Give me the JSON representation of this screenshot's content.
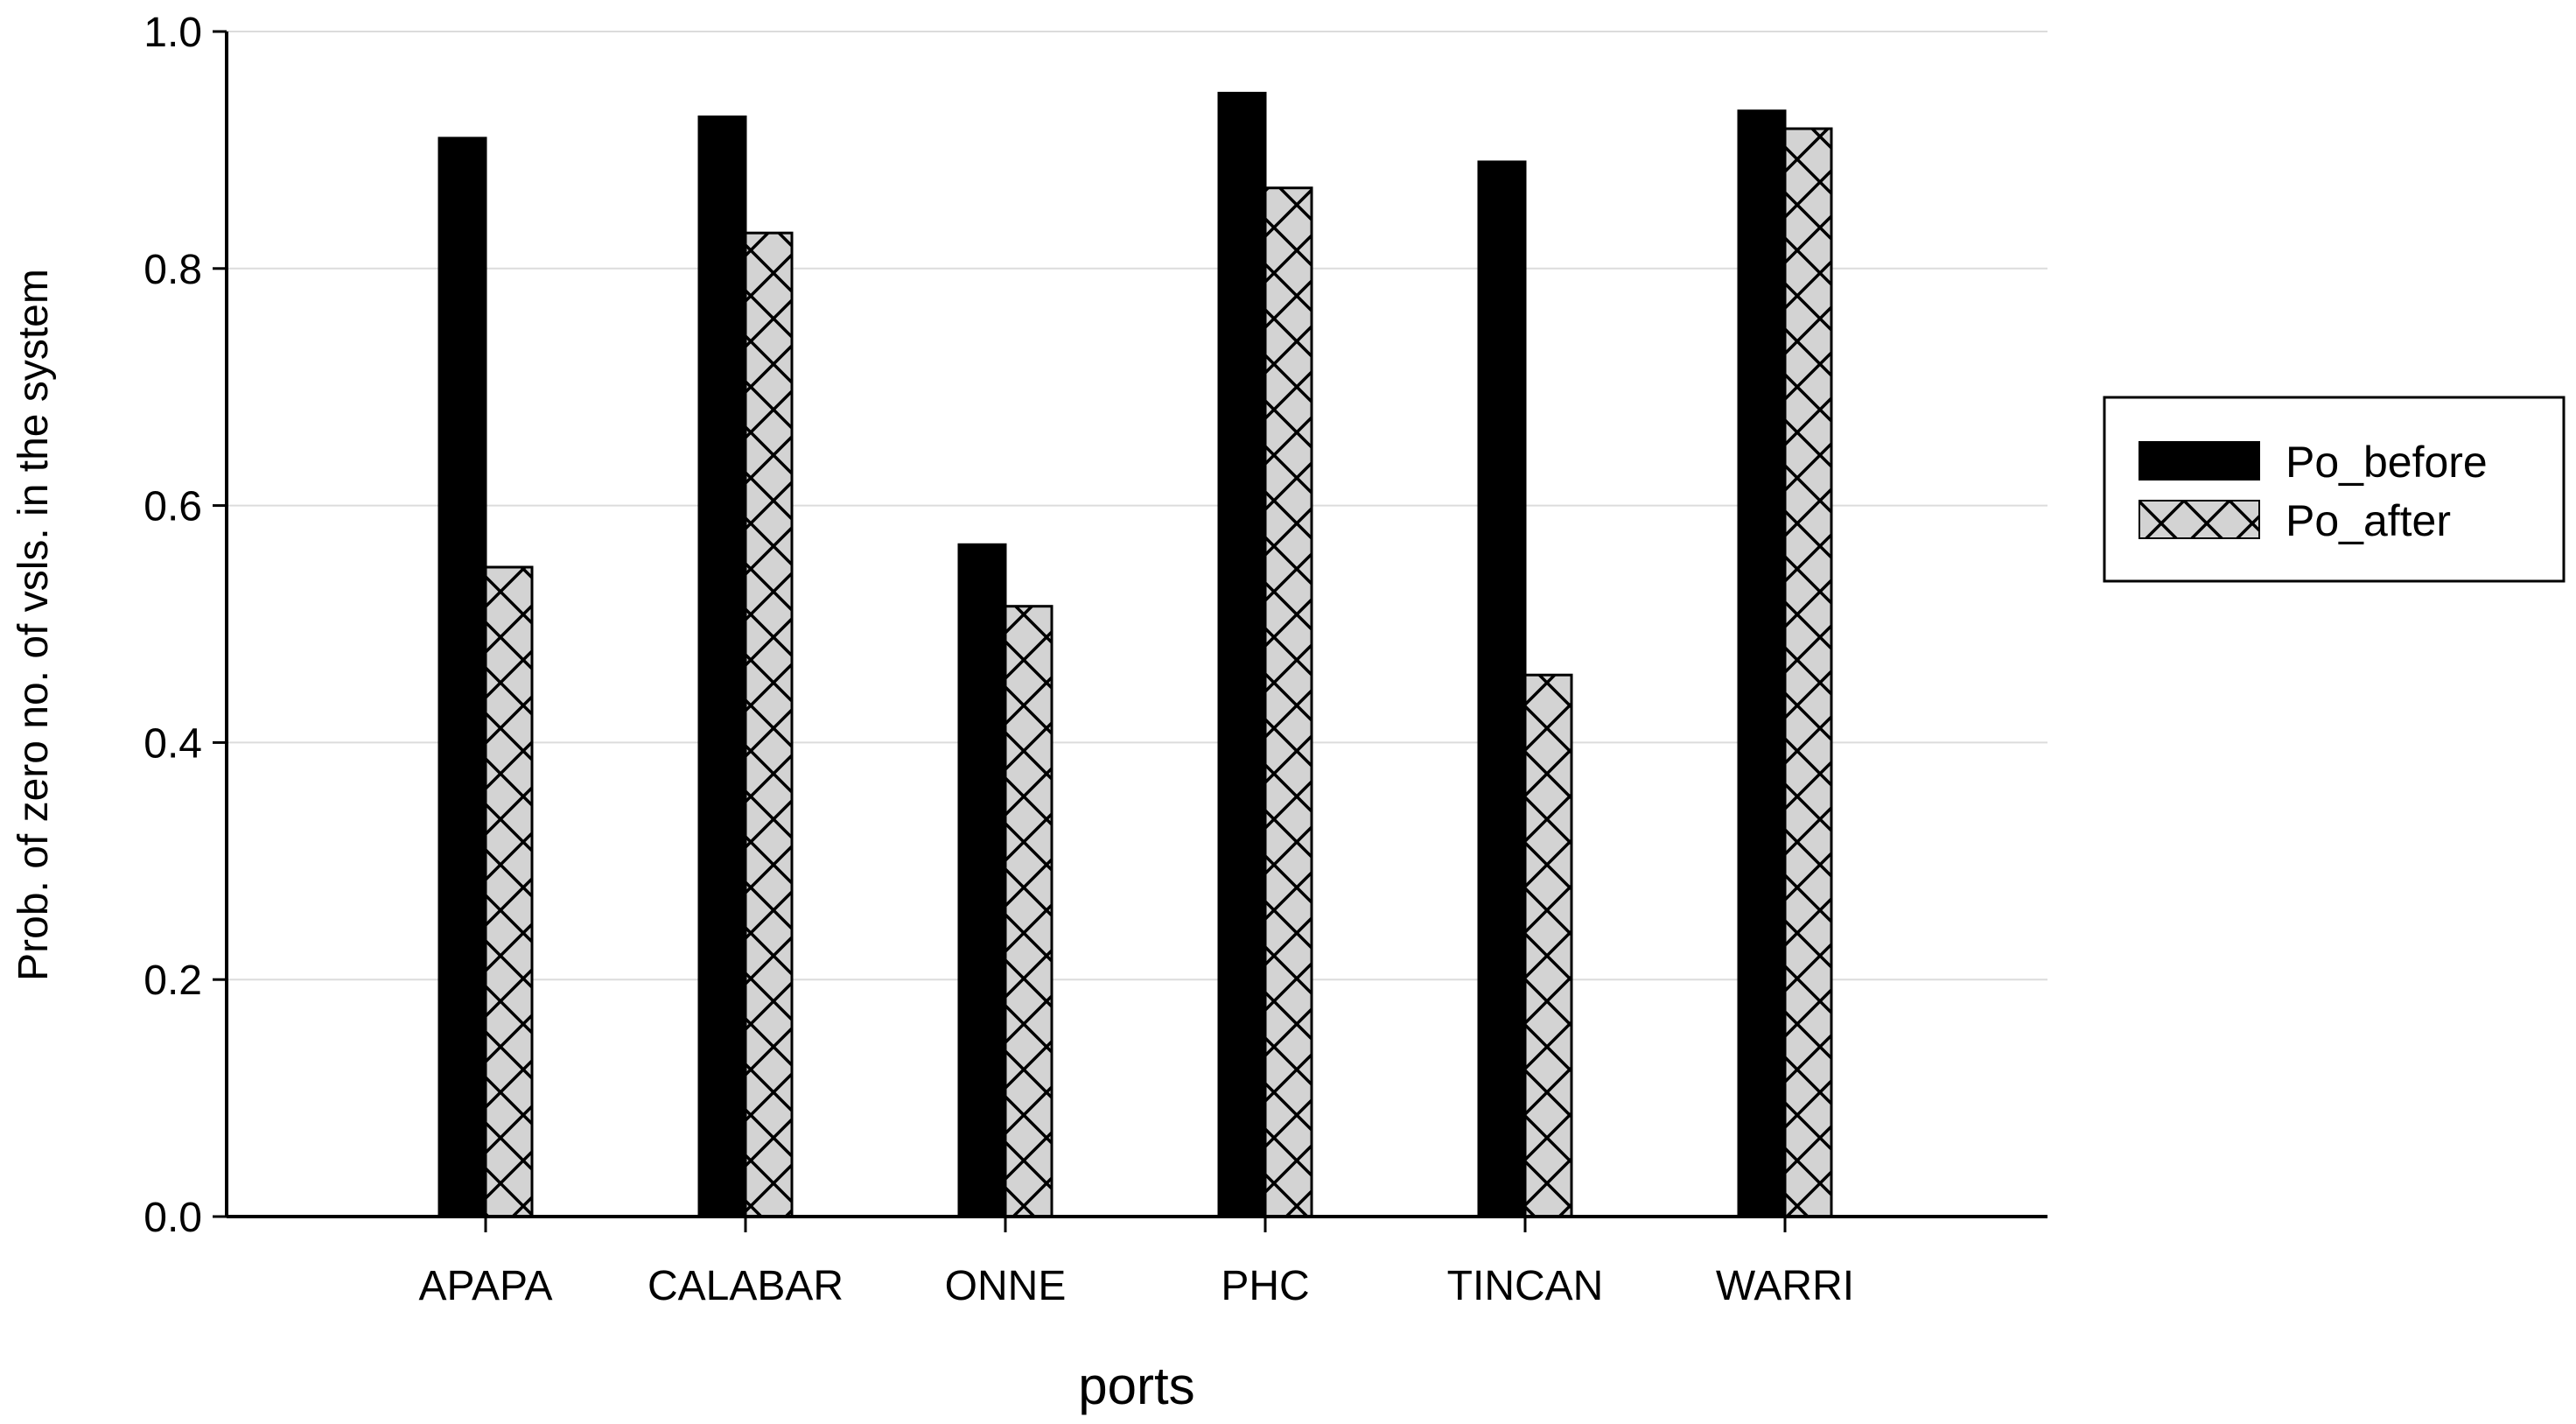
{
  "chart_data": {
    "type": "bar",
    "title": "",
    "xlabel": "ports",
    "ylabel": "Prob. of zero no. of vsls. in the system",
    "categories": [
      "APAPA",
      "CALABAR",
      "ONNE",
      "PHC",
      "TINCAN",
      "WARRI"
    ],
    "series": [
      {
        "name": "Po_before",
        "values": [
          0.91,
          0.928,
          0.567,
          0.948,
          0.89,
          0.933
        ],
        "fill": "#000000",
        "pattern": "solid"
      },
      {
        "name": "Po_after",
        "values": [
          0.548,
          0.83,
          0.515,
          0.868,
          0.457,
          0.918
        ],
        "fill": "#d3d3d3",
        "pattern": "crosshatch"
      }
    ],
    "ylim": [
      0.0,
      1.0
    ],
    "yticks": [
      "0.0",
      "0.2",
      "0.4",
      "0.6",
      "0.8",
      "1.0"
    ],
    "grid": true,
    "legend_position": "right"
  }
}
